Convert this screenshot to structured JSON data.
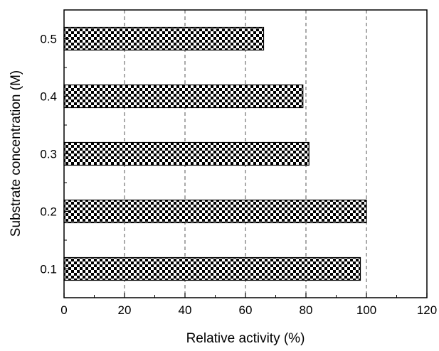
{
  "chart_data": {
    "type": "bar",
    "orientation": "horizontal",
    "categories": [
      "0.1",
      "0.2",
      "0.3",
      "0.4",
      "0.5"
    ],
    "values": [
      98,
      100,
      81,
      79,
      66
    ],
    "xlabel": "Relative activity (%)",
    "ylabel": "Substrate concentration (M)",
    "xlim": [
      0,
      120
    ],
    "xticks": [
      "0",
      "20",
      "40",
      "60",
      "80",
      "100",
      "120"
    ],
    "grid": "vertical dashed",
    "bar_fill": "checkerboard",
    "colors": {
      "dark": "#000000",
      "light": "#ffffff"
    }
  }
}
